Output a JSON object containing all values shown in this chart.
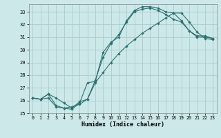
{
  "xlabel": "Humidex (Indice chaleur)",
  "bg_color": "#cce8e8",
  "grid_color": "#aacccc",
  "line_color": "#2a7070",
  "xlim": [
    -0.5,
    23.5
  ],
  "ylim": [
    25,
    33.6
  ],
  "yticks": [
    25,
    26,
    27,
    28,
    29,
    30,
    31,
    32,
    33
  ],
  "xticks": [
    0,
    1,
    2,
    3,
    4,
    5,
    6,
    7,
    8,
    9,
    10,
    11,
    12,
    13,
    14,
    15,
    16,
    17,
    18,
    19,
    20,
    21,
    22,
    23
  ],
  "line1_x": [
    0,
    1,
    2,
    3,
    4,
    5,
    6,
    7,
    8,
    9,
    10,
    11,
    12,
    13,
    14,
    15,
    16,
    17,
    18,
    19,
    20,
    21,
    22,
    23
  ],
  "line1_y": [
    26.2,
    26.1,
    26.5,
    25.6,
    25.4,
    25.3,
    25.8,
    27.4,
    27.5,
    29.8,
    30.6,
    31.0,
    32.3,
    33.1,
    33.4,
    33.4,
    33.3,
    33.0,
    32.9,
    32.3,
    31.5,
    31.1,
    31.1,
    30.9
  ],
  "line2_x": [
    0,
    1,
    2,
    3,
    4,
    5,
    6,
    7,
    8,
    9,
    10,
    11,
    12,
    13,
    14,
    15,
    16,
    17,
    18,
    19,
    20,
    21,
    22,
    23
  ],
  "line2_y": [
    26.2,
    26.1,
    26.5,
    26.2,
    25.8,
    25.4,
    25.9,
    26.1,
    27.6,
    29.4,
    30.5,
    31.2,
    32.2,
    33.0,
    33.2,
    33.3,
    33.1,
    32.8,
    32.4,
    32.2,
    31.5,
    31.0,
    31.0,
    30.9
  ],
  "line3_x": [
    0,
    1,
    2,
    3,
    4,
    5,
    6,
    7,
    8,
    9,
    10,
    11,
    12,
    13,
    14,
    15,
    16,
    17,
    18,
    19,
    20,
    21,
    22,
    23
  ],
  "line3_y": [
    26.2,
    26.1,
    26.2,
    25.5,
    25.4,
    25.5,
    25.7,
    26.1,
    27.4,
    28.2,
    29.0,
    29.7,
    30.3,
    30.8,
    31.3,
    31.7,
    32.1,
    32.5,
    32.9,
    32.9,
    32.2,
    31.4,
    30.9,
    30.8
  ]
}
